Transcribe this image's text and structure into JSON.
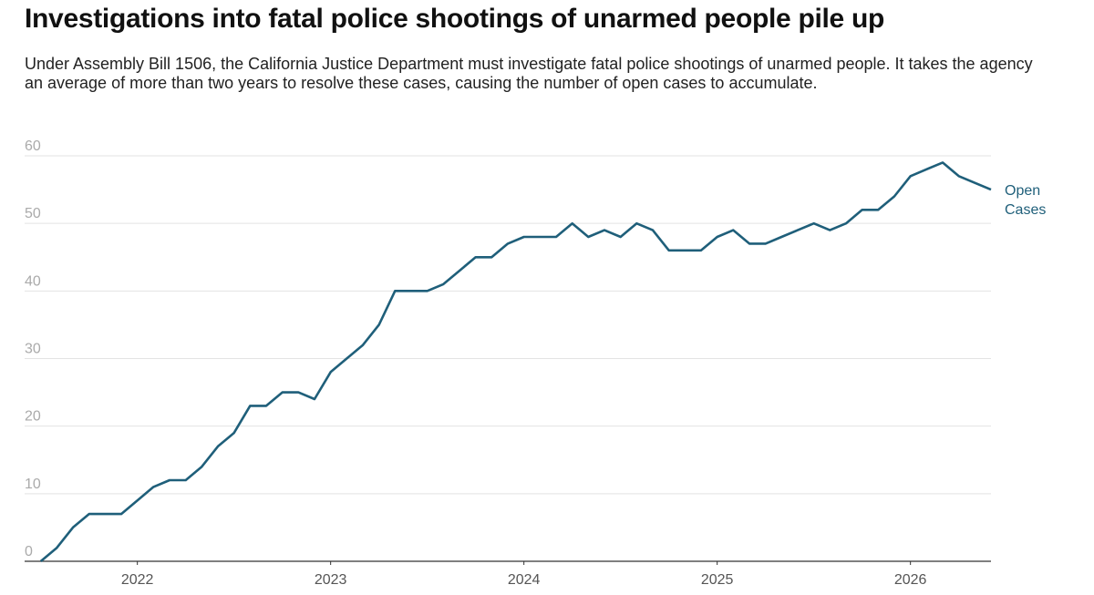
{
  "header": {
    "title": "Investigations into fatal police shootings of unarmed people pile up",
    "subtitle": "Under Assembly Bill 1506, the California Justice Department must investigate fatal police shootings of unarmed people. It takes the agency an average of more than two years to resolve these cases, causing the number of open cases to accumulate."
  },
  "chart_data": {
    "type": "line",
    "title": "Investigations into fatal police shootings of unarmed people pile up",
    "subtitle": "Under Assembly Bill 1506, the California Justice Department must investigate fatal police shootings of unarmed people. It takes the agency an average of more than two years to resolve these cases, causing the number of open cases to accumulate.",
    "xlabel": "",
    "ylabel": "",
    "ylim": [
      0,
      60
    ],
    "yticks": [
      0,
      10,
      20,
      30,
      40,
      50,
      60
    ],
    "xlim": [
      "2021-06",
      "2026-06"
    ],
    "xticks": [
      "2022",
      "2023",
      "2024",
      "2025",
      "2026"
    ],
    "grid": true,
    "legend": "end-of-line label",
    "series": [
      {
        "name": "Open Cases",
        "label_lines": [
          "Open",
          "Cases"
        ],
        "color": "#1f5f7a",
        "x": [
          "2021-07",
          "2021-08",
          "2021-09",
          "2021-10",
          "2021-11",
          "2021-12",
          "2022-01",
          "2022-02",
          "2022-03",
          "2022-04",
          "2022-05",
          "2022-06",
          "2022-07",
          "2022-08",
          "2022-09",
          "2022-10",
          "2022-11",
          "2022-12",
          "2023-01",
          "2023-02",
          "2023-03",
          "2023-04",
          "2023-05",
          "2023-06",
          "2023-07",
          "2023-08",
          "2023-09",
          "2023-10",
          "2023-11",
          "2023-12",
          "2024-01",
          "2024-02",
          "2024-03",
          "2024-04",
          "2024-05",
          "2024-06",
          "2024-07",
          "2024-08",
          "2024-09",
          "2024-10",
          "2024-11",
          "2024-12",
          "2025-01",
          "2025-02",
          "2025-03",
          "2025-04",
          "2025-05",
          "2025-06",
          "2025-07",
          "2025-08",
          "2025-09",
          "2025-10",
          "2025-11",
          "2025-12",
          "2026-01",
          "2026-02",
          "2026-03",
          "2026-04",
          "2026-05",
          "2026-06"
        ],
        "values": [
          0,
          2,
          5,
          7,
          7,
          7,
          9,
          11,
          12,
          12,
          14,
          17,
          19,
          23,
          23,
          25,
          25,
          24,
          28,
          30,
          32,
          35,
          40,
          40,
          40,
          41,
          43,
          45,
          45,
          47,
          48,
          48,
          48,
          50,
          48,
          49,
          48,
          50,
          49,
          46,
          46,
          46,
          48,
          49,
          47,
          47,
          48,
          49,
          50,
          49,
          50,
          52,
          52,
          54,
          57,
          58,
          59,
          57,
          56,
          55
        ]
      }
    ]
  }
}
